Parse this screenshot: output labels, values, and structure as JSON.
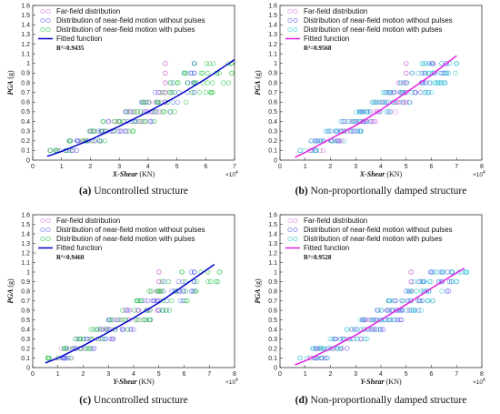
{
  "chart_data": [
    {
      "id": "a",
      "type": "scatter",
      "caption_label": "(a)",
      "caption_text": " Uncontrolled structure",
      "xlabel": "X-Shear",
      "xunit": " (KN)",
      "ylabel": "PGA",
      "yunit": " (g)",
      "x_exponent": "×10",
      "x_exponent_power": "4",
      "xlim": [
        0,
        7
      ],
      "ylim": [
        0,
        1.6
      ],
      "xticks": [
        0,
        1,
        2,
        3,
        4,
        5,
        6,
        7
      ],
      "xtick_labels": [
        "0",
        "1",
        "2",
        "3",
        "4",
        "5",
        "6",
        "7"
      ],
      "yticks": [
        0,
        0.1,
        0.2,
        0.3,
        0.4,
        0.5,
        0.6,
        0.7,
        0.8,
        0.9,
        1,
        1.1,
        1.2,
        1.3,
        1.4,
        1.5,
        1.6
      ],
      "ytick_labels": [
        "0",
        "0.1",
        "0.2",
        "0.3",
        "0.4",
        "0.5",
        "0.6",
        "0.7",
        "0.8",
        "0.9",
        "1",
        "1.1",
        "1.2",
        "1.3",
        "1.4",
        "1.5",
        "1.6"
      ],
      "legend": [
        "Far-field distribution",
        "Distribution of near-field motion without pulses",
        "Distribution of near-field motion with pulses",
        "Fitted function"
      ],
      "r2": "R²=0.9435",
      "fit_color": "#0000cc",
      "series": [
        {
          "name": "Far-field distribution",
          "color": "#d98fd9",
          "x_range": [
            0.6,
            4.6
          ],
          "seed": 11,
          "spread": 0.55
        },
        {
          "name": "Distribution of near-field motion without pulses",
          "color": "#6f7ff0",
          "x_range": [
            0.8,
            5.6
          ],
          "seed": 23,
          "spread": 0.6
        },
        {
          "name": "Distribution of near-field motion with pulses",
          "color": "#3ec85a",
          "x_range": [
            0.6,
            6.9
          ],
          "seed": 37,
          "spread": 0.65
        }
      ],
      "fit": {
        "name": "Fitted function",
        "x": [
          0.5,
          1,
          2,
          3,
          4,
          5,
          6,
          7
        ],
        "y": [
          0.04,
          0.09,
          0.21,
          0.35,
          0.5,
          0.66,
          0.84,
          1.04
        ]
      }
    },
    {
      "id": "b",
      "type": "scatter",
      "caption_label": "(b)",
      "caption_text": " Non-proportionally damped structure",
      "xlabel": "X-Shear",
      "xunit": " (KN)",
      "ylabel": "PGA",
      "yunit": " (g)",
      "x_exponent": "×10",
      "x_exponent_power": "4",
      "xlim": [
        0,
        8
      ],
      "ylim": [
        0,
        1.6
      ],
      "xticks": [
        0,
        1,
        2,
        3,
        4,
        5,
        6,
        7,
        8
      ],
      "xtick_labels": [
        "0",
        "1",
        "2",
        "3",
        "4",
        "5",
        "6",
        "7",
        "8"
      ],
      "yticks": [
        0,
        0.1,
        0.2,
        0.3,
        0.4,
        0.5,
        0.6,
        0.7,
        0.8,
        0.9,
        1,
        1.1,
        1.2,
        1.3,
        1.4,
        1.5,
        1.6
      ],
      "ytick_labels": [
        "0",
        "0.1",
        "0.2",
        "0.3",
        "0.4",
        "0.5",
        "0.6",
        "0.7",
        "0.8",
        "0.9",
        "1",
        "1.1",
        "1.2",
        "1.3",
        "1.4",
        "1.5",
        "1.6"
      ],
      "legend": [
        "Far-field distribution",
        "Distribution of near-field motion without pulses",
        "Distribution of near-field motion with pulses",
        "Fitted function"
      ],
      "r2": "R²=0.9568",
      "fit_color": "#e020e0",
      "series": [
        {
          "name": "Far-field distribution",
          "color": "#d98fd9",
          "x_range": [
            1.2,
            5.0
          ],
          "seed": 41,
          "spread": 0.5
        },
        {
          "name": "Distribution of near-field motion without pulses",
          "color": "#6f6ff0",
          "x_range": [
            1.4,
            6.6
          ],
          "seed": 53,
          "spread": 0.55
        },
        {
          "name": "Distribution of near-field motion with pulses",
          "color": "#45c8d8",
          "x_range": [
            0.8,
            7.0
          ],
          "seed": 67,
          "spread": 0.6
        }
      ],
      "fit": {
        "name": "Fitted function",
        "x": [
          0.6,
          1,
          2,
          3,
          4,
          5,
          6,
          7
        ],
        "y": [
          0.03,
          0.08,
          0.22,
          0.36,
          0.52,
          0.7,
          0.88,
          1.08
        ]
      }
    },
    {
      "id": "c",
      "type": "scatter",
      "caption_label": "(c)",
      "caption_text": " Uncontrolled structure",
      "xlabel": "Y-Shear",
      "xunit": " (KN)",
      "ylabel": "PGA",
      "yunit": " (g)",
      "x_exponent": "×10",
      "x_exponent_power": "4",
      "xlim": [
        0,
        8
      ],
      "ylim": [
        0,
        1.6
      ],
      "xticks": [
        0,
        1,
        2,
        3,
        4,
        5,
        6,
        7,
        8
      ],
      "xtick_labels": [
        "0",
        "1",
        "2",
        "3",
        "4",
        "5",
        "6",
        "7",
        "8"
      ],
      "yticks": [
        0,
        0.1,
        0.2,
        0.3,
        0.4,
        0.5,
        0.6,
        0.7,
        0.8,
        0.9,
        1,
        1.1,
        1.2,
        1.3,
        1.4,
        1.5,
        1.6
      ],
      "ytick_labels": [
        "0",
        "0.1",
        "0.2",
        "0.3",
        "0.4",
        "0.5",
        "0.6",
        "0.7",
        "0.8",
        "0.9",
        "1",
        "1.1",
        "1.2",
        "1.3",
        "1.4",
        "1.5",
        "1.6"
      ],
      "legend": [
        "Far-field distribution",
        "Distribution of near-field motion without pulses",
        "Distribution of near-field motion with pulses",
        "Fitted function"
      ],
      "r2": "R²=0.9460",
      "fit_color": "#0000cc",
      "series": [
        {
          "name": "Far-field distribution",
          "color": "#d98fd9",
          "x_range": [
            1.0,
            5.0
          ],
          "seed": 71,
          "spread": 0.55
        },
        {
          "name": "Distribution of near-field motion without pulses",
          "color": "#6f7ff0",
          "x_range": [
            1.2,
            6.4
          ],
          "seed": 83,
          "spread": 0.6
        },
        {
          "name": "Distribution of near-field motion with pulses",
          "color": "#3ec85a",
          "x_range": [
            0.6,
            7.4
          ],
          "seed": 97,
          "spread": 0.65
        }
      ],
      "fit": {
        "name": "Fitted function",
        "x": [
          0.5,
          1,
          2,
          3,
          4,
          5,
          6,
          7.2
        ],
        "y": [
          0.05,
          0.1,
          0.23,
          0.37,
          0.52,
          0.68,
          0.86,
          1.08
        ]
      }
    },
    {
      "id": "d",
      "type": "scatter",
      "caption_label": "(d)",
      "caption_text": " Non-proportionally damped structure",
      "xlabel": "Y-Shear",
      "xunit": " (KN)",
      "ylabel": "PGA",
      "yunit": " (g)",
      "x_exponent": "×10",
      "x_exponent_power": "4",
      "xlim": [
        0,
        8
      ],
      "ylim": [
        0,
        1.6
      ],
      "xticks": [
        0,
        1,
        2,
        3,
        4,
        5,
        6,
        7,
        8
      ],
      "xtick_labels": [
        "0",
        "1",
        "2",
        "3",
        "4",
        "5",
        "6",
        "7",
        "8"
      ],
      "yticks": [
        0,
        0.1,
        0.2,
        0.3,
        0.4,
        0.5,
        0.6,
        0.7,
        0.8,
        0.9,
        1,
        1.1,
        1.2,
        1.3,
        1.4,
        1.5,
        1.6
      ],
      "ytick_labels": [
        "0",
        "0.1",
        "0.2",
        "0.3",
        "0.4",
        "0.5",
        "0.6",
        "0.7",
        "0.8",
        "0.9",
        "1",
        "1.1",
        "1.2",
        "1.3",
        "1.4",
        "1.5",
        "1.6"
      ],
      "legend": [
        "Far-field distribution",
        "Distribution of near-field motion without pulses",
        "Distribution of near-field motion with pulses",
        "Fitted function"
      ],
      "r2": "R²=0.9528",
      "fit_color": "#e020e0",
      "series": [
        {
          "name": "Far-field distribution",
          "color": "#d98fd9",
          "x_range": [
            1.2,
            5.2
          ],
          "seed": 101,
          "spread": 0.5
        },
        {
          "name": "Distribution of near-field motion without pulses",
          "color": "#6f6ff0",
          "x_range": [
            1.4,
            6.8
          ],
          "seed": 113,
          "spread": 0.55
        },
        {
          "name": "Distribution of near-field motion with pulses",
          "color": "#45c8d8",
          "x_range": [
            0.8,
            7.4
          ],
          "seed": 127,
          "spread": 0.6
        }
      ],
      "fit": {
        "name": "Fitted function",
        "x": [
          0.6,
          1,
          2,
          3,
          4,
          5,
          6,
          7.3
        ],
        "y": [
          0.03,
          0.07,
          0.2,
          0.34,
          0.5,
          0.66,
          0.83,
          1.04
        ]
      }
    }
  ]
}
